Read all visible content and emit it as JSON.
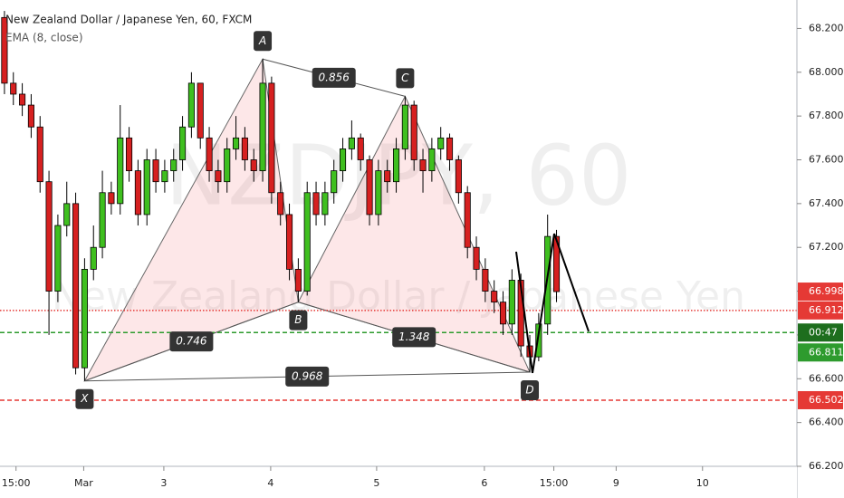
{
  "chart_data": {
    "type": "candlestick",
    "title": "New Zealand Dollar / Japanese Yen, 60, FXCM",
    "indicator": "EMA (8, close)",
    "watermark": "NZDJPY, 60",
    "watermark_subtitle": "New Zealand Dollar / Japanese Yen",
    "up_color": "#3fbf1f",
    "down_color": "#d62020",
    "open": [
      68.25,
      67.95,
      67.9,
      67.85,
      67.75,
      67.5,
      67.0,
      67.3,
      67.4,
      66.65,
      67.1,
      67.2,
      67.45,
      67.4,
      67.7,
      67.55,
      67.35,
      67.6,
      67.5,
      67.55,
      67.6,
      67.75,
      67.95,
      67.7,
      67.55,
      67.5,
      67.65,
      67.7,
      67.6,
      67.55,
      67.95,
      67.45,
      67.35,
      67.1,
      67.0,
      67.45,
      67.35,
      67.45,
      67.55,
      67.65,
      67.7,
      67.6,
      67.35,
      67.55,
      67.5,
      67.65,
      67.85,
      67.6,
      67.55,
      67.65,
      67.7,
      67.6,
      67.45,
      67.2,
      67.1,
      67.0,
      66.95,
      66.85,
      67.05,
      66.75,
      66.7,
      66.85,
      67.25
    ],
    "high": [
      68.28,
      68.0,
      67.95,
      67.9,
      67.8,
      67.55,
      67.35,
      67.5,
      67.45,
      67.15,
      67.3,
      67.55,
      67.5,
      67.85,
      67.75,
      67.6,
      67.65,
      67.65,
      67.6,
      67.65,
      67.8,
      68.0,
      67.95,
      67.75,
      67.6,
      67.7,
      67.8,
      67.75,
      67.65,
      68.06,
      67.98,
      67.5,
      67.4,
      67.15,
      67.5,
      67.5,
      67.5,
      67.6,
      67.7,
      67.78,
      67.72,
      67.62,
      67.6,
      67.6,
      67.7,
      67.89,
      67.87,
      67.65,
      67.7,
      67.75,
      67.72,
      67.62,
      67.48,
      67.25,
      67.15,
      67.05,
      67.0,
      67.1,
      67.08,
      66.8,
      66.9,
      67.35,
      67.28
    ],
    "low": [
      67.9,
      67.85,
      67.8,
      67.7,
      67.45,
      66.8,
      66.95,
      67.25,
      66.62,
      66.59,
      67.05,
      67.15,
      67.35,
      67.35,
      67.5,
      67.3,
      67.3,
      67.45,
      67.45,
      67.5,
      67.55,
      67.7,
      67.65,
      67.5,
      67.45,
      67.45,
      67.6,
      67.55,
      67.5,
      67.5,
      67.4,
      67.3,
      67.05,
      66.95,
      66.98,
      67.3,
      67.3,
      67.4,
      67.5,
      67.6,
      67.55,
      67.3,
      67.3,
      67.45,
      67.45,
      67.6,
      67.55,
      67.45,
      67.5,
      67.6,
      67.55,
      67.4,
      67.15,
      67.05,
      66.95,
      66.9,
      66.8,
      66.8,
      66.7,
      66.63,
      66.68,
      66.8,
      66.95
    ],
    "close": [
      67.95,
      67.9,
      67.85,
      67.75,
      67.5,
      67.0,
      67.3,
      67.4,
      66.65,
      67.1,
      67.2,
      67.45,
      67.4,
      67.7,
      67.55,
      67.35,
      67.6,
      67.5,
      67.55,
      67.6,
      67.75,
      67.95,
      67.7,
      67.55,
      67.5,
      67.65,
      67.7,
      67.6,
      67.55,
      67.95,
      67.45,
      67.35,
      67.1,
      67.0,
      67.45,
      67.35,
      67.45,
      67.55,
      67.65,
      67.7,
      67.6,
      67.35,
      67.55,
      67.5,
      67.65,
      67.85,
      67.6,
      67.55,
      67.65,
      67.7,
      67.6,
      67.45,
      67.2,
      67.1,
      67.0,
      66.95,
      66.85,
      67.05,
      66.75,
      66.7,
      66.85,
      67.25,
      66.998
    ],
    "xlim": [
      -0.5,
      89
    ],
    "xticks": [
      {
        "value": 1.3,
        "label": "15:00"
      },
      {
        "value": 8.9,
        "label": "Mar"
      },
      {
        "value": 17.9,
        "label": "3"
      },
      {
        "value": 29.9,
        "label": "4"
      },
      {
        "value": 41.8,
        "label": "5"
      },
      {
        "value": 53.9,
        "label": "6"
      },
      {
        "value": 61.7,
        "label": "15:00"
      },
      {
        "value": 68.7,
        "label": "9"
      },
      {
        "value": 78.4,
        "label": "10"
      }
    ],
    "ylim": [
      66.2,
      68.33
    ],
    "yticks": [
      {
        "value": 66.2,
        "label": "66.200"
      },
      {
        "value": 66.4,
        "label": "66.400"
      },
      {
        "value": 66.6,
        "label": "66.600"
      },
      {
        "value": 66.8,
        "label": "66.800"
      },
      {
        "value": 67.0,
        "label": "67.000"
      },
      {
        "value": 67.2,
        "label": "67.200"
      },
      {
        "value": 67.4,
        "label": "67.400"
      },
      {
        "value": 67.6,
        "label": "67.600"
      },
      {
        "value": 67.8,
        "label": "67.800"
      },
      {
        "value": 68.0,
        "label": "68.000"
      },
      {
        "value": 68.2,
        "label": "68.200"
      }
    ],
    "price_lines": [
      {
        "value": 66.998,
        "color": "#e53935",
        "line": "none"
      },
      {
        "value": 66.912,
        "color": "#e53935",
        "line": "dotted"
      },
      {
        "value": 66.811,
        "color": "#2e9b2e",
        "line": "dashed",
        "countdown": "00:47"
      },
      {
        "value": 66.502,
        "color": "#e53935",
        "line": "dashed"
      }
    ],
    "pattern": {
      "points": [
        {
          "label": "X",
          "x": 9,
          "y": 66.59
        },
        {
          "label": "A",
          "x": 29,
          "y": 68.06
        },
        {
          "label": "B",
          "x": 33,
          "y": 66.95
        },
        {
          "label": "C",
          "x": 45,
          "y": 67.89
        },
        {
          "label": "D",
          "x": 59,
          "y": 66.63
        }
      ],
      "ratios": [
        0.746,
        0.856,
        1.348,
        0.968
      ]
    }
  }
}
